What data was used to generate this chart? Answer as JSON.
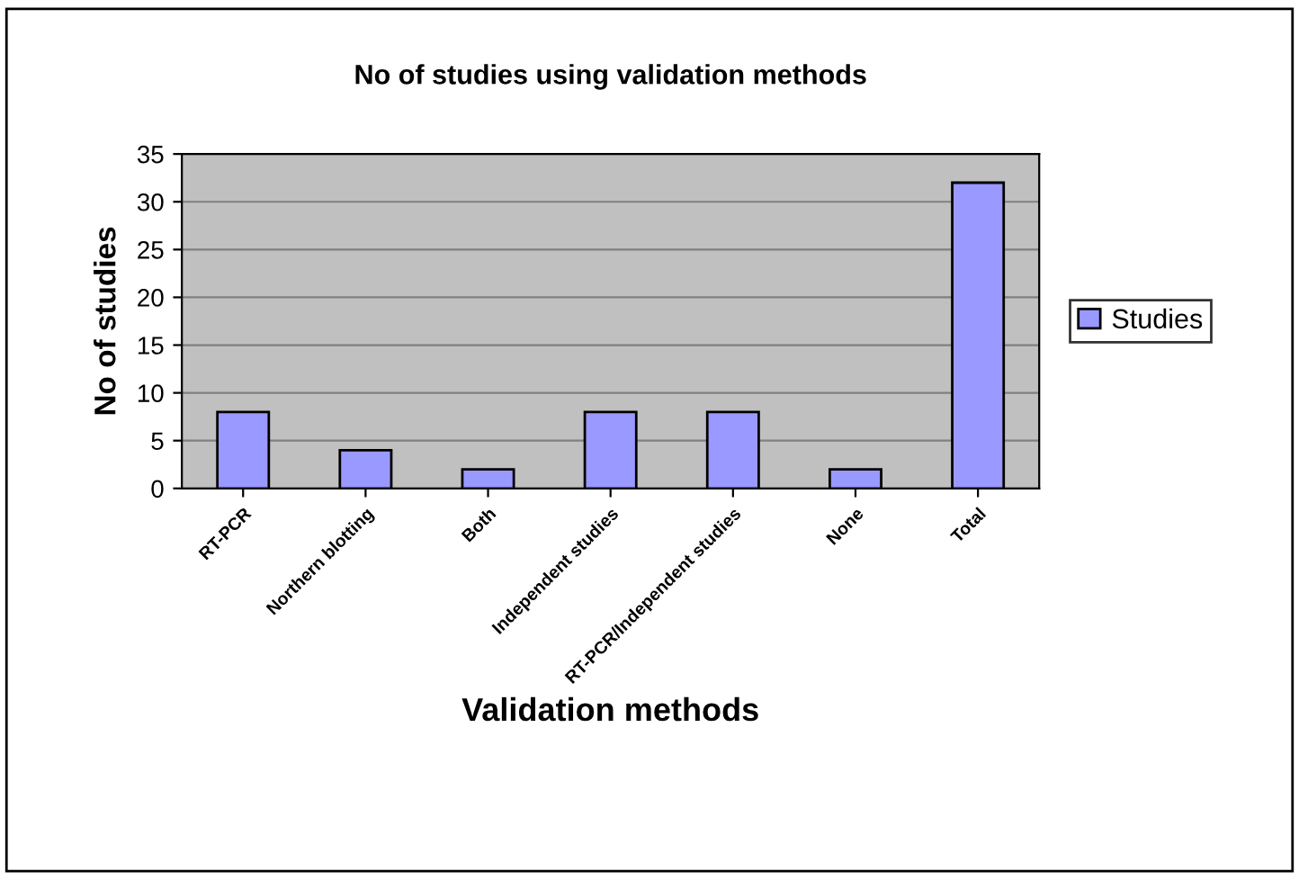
{
  "chart_data": {
    "type": "bar",
    "title": "No of studies using validation methods",
    "xlabel": "Validation methods",
    "ylabel": "No of studies",
    "categories": [
      "RT-PCR",
      "Northern blotting",
      "Both",
      "Independent studies",
      "RT-PCR/Independent studies",
      "None",
      "Total"
    ],
    "series": [
      {
        "name": "Studies",
        "color": "#9999ff",
        "values": [
          8,
          4,
          2,
          8,
          8,
          2,
          32
        ]
      }
    ],
    "ylim": [
      0,
      35
    ],
    "yticks": [
      0,
      5,
      10,
      15,
      20,
      25,
      30,
      35
    ],
    "grid": "y",
    "legend": "right"
  }
}
